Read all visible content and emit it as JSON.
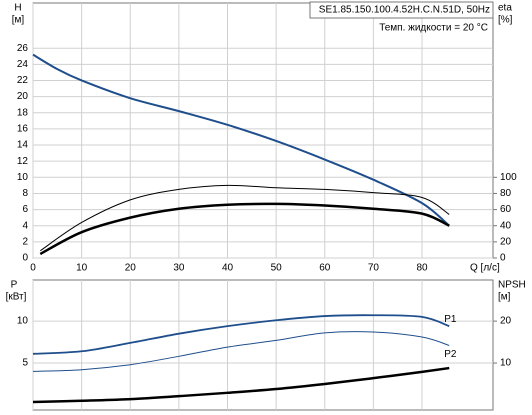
{
  "chart_data": [
    {
      "type": "line",
      "title": "SE1.85.150.100.4.52H.C.N.51D, 50Hz",
      "annotation": "Темп. жидкости = 20 °C",
      "ylabel": "H",
      "yunit": "[м]",
      "y2label": "eta",
      "y2unit": "[%]",
      "xlabel": "Q [л/с]",
      "xlim": [
        0,
        94.6
      ],
      "xticks": [
        0,
        10,
        20,
        30,
        40,
        50,
        60,
        70,
        80
      ],
      "ylim": [
        0,
        31.6
      ],
      "yticks": [
        0,
        2,
        4,
        6,
        8,
        10,
        12,
        14,
        16,
        18,
        20,
        22,
        24,
        26
      ],
      "y2lim": [
        0,
        316
      ],
      "y2ticks": [
        0,
        20,
        40,
        60,
        80,
        100
      ],
      "grid": true,
      "series": [
        {
          "color": "#1f4e8c",
          "width": 2,
          "x": [
            0,
            5,
            10,
            20,
            30,
            40,
            50,
            60,
            70,
            80,
            85.6
          ],
          "values": [
            25.2,
            23.4,
            22,
            19.8,
            18.2,
            16.5,
            14.5,
            12.2,
            9.7,
            6.8,
            4.0
          ]
        },
        {
          "color": "#000000",
          "width": 2.5,
          "axis": "y2",
          "x": [
            1.5,
            10,
            20,
            30,
            40,
            50,
            60,
            70,
            80,
            85.6
          ],
          "values": [
            5,
            32,
            50,
            61,
            66,
            67,
            65,
            61,
            55,
            40
          ]
        },
        {
          "color": "#000000",
          "width": 1,
          "axis": "y2",
          "x": [
            1.5,
            10,
            20,
            30,
            40,
            50,
            60,
            70,
            80,
            85.6
          ],
          "values": [
            9,
            44,
            72,
            85,
            90,
            87,
            85,
            81,
            75,
            54
          ]
        }
      ]
    },
    {
      "type": "line",
      "ylabel": "P",
      "yunit": "[кВт]",
      "y2label": "NPSH",
      "y2unit": "[м]",
      "xlim": [
        0,
        94.6
      ],
      "ylim": [
        -0.6,
        14.9
      ],
      "yticks": [
        5,
        10
      ],
      "y2lim": [
        -1.2,
        29.8
      ],
      "y2ticks": [
        10,
        20
      ],
      "grid": true,
      "series": [
        {
          "name": "P1",
          "color": "#1f4e8c",
          "width": 1.8,
          "x": [
            0,
            10,
            20,
            30,
            40,
            50,
            60,
            70,
            80,
            85.6
          ],
          "values": [
            6.1,
            6.4,
            7.4,
            8.5,
            9.4,
            10.1,
            10.6,
            10.7,
            10.5,
            9.4
          ]
        },
        {
          "name": "P2",
          "color": "#1f4e8c",
          "width": 1,
          "x": [
            0,
            10,
            20,
            30,
            40,
            50,
            60,
            70,
            80,
            85.6
          ],
          "values": [
            4.0,
            4.2,
            4.8,
            5.8,
            6.9,
            7.7,
            8.6,
            8.7,
            8.1,
            7.1
          ]
        },
        {
          "color": "#000000",
          "width": 2.5,
          "axis": "y2",
          "x": [
            0,
            10,
            20,
            30,
            40,
            50,
            60,
            70,
            80,
            85.6
          ],
          "values": [
            0.7,
            1.0,
            1.4,
            2.1,
            2.9,
            3.8,
            5.0,
            6.4,
            7.9,
            8.8
          ]
        }
      ]
    }
  ]
}
